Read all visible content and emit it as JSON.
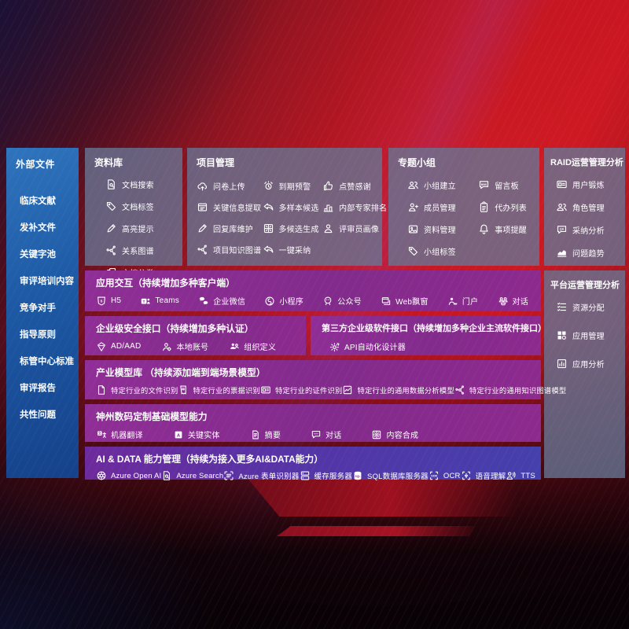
{
  "colors": {
    "background_red": "#c01320",
    "sidebar_blue": "#1d59a4",
    "panel_slate": "#68748f",
    "band_purple": "#872c8e",
    "band_indigo": "#4440ac",
    "text": "#ffffff"
  },
  "sidebar": {
    "title": "外部文件",
    "items": [
      "临床文献",
      "发补文件",
      "关键字池",
      "审评培训内容",
      "竞争对手",
      "指导原则",
      "标管中心标准",
      "审评报告",
      "共性问题"
    ]
  },
  "top_panels": [
    {
      "key": "library",
      "title": "资料库",
      "items": [
        {
          "icon": "doc-search",
          "label": "文档搜索"
        },
        {
          "icon": "tag",
          "label": "文档标签"
        },
        {
          "icon": "pen",
          "label": "高亮提示"
        },
        {
          "icon": "graph",
          "label": "关系图谱"
        },
        {
          "icon": "copy",
          "label": "文档分类"
        }
      ]
    },
    {
      "key": "project",
      "title": "项目管理",
      "items": [
        {
          "icon": "cloud-up",
          "label": "问卷上传"
        },
        {
          "icon": "alarm",
          "label": "到期预警"
        },
        {
          "icon": "thumb",
          "label": "点赞感谢"
        },
        {
          "icon": "window",
          "label": "关键信息提取"
        },
        {
          "icon": "reply",
          "label": "多样本候选"
        },
        {
          "icon": "podium",
          "label": "内部专家排名"
        },
        {
          "icon": "pen",
          "label": "回复库维护"
        },
        {
          "icon": "compose",
          "label": "多候选生成"
        },
        {
          "icon": "person",
          "label": "评审员画像"
        },
        {
          "icon": "graph",
          "label": "项目知识图谱"
        },
        {
          "icon": "reply",
          "label": "一键采纳"
        }
      ]
    },
    {
      "key": "group",
      "title": "专题小组",
      "items": [
        {
          "icon": "people",
          "label": "小组建立"
        },
        {
          "icon": "bbs",
          "label": "留言板"
        },
        {
          "icon": "person-add",
          "label": "成员管理"
        },
        {
          "icon": "clipboard",
          "label": "代办列表"
        },
        {
          "icon": "album",
          "label": "资料管理"
        },
        {
          "icon": "bell",
          "label": "事项提醒"
        },
        {
          "icon": "tag",
          "label": "小组标签"
        }
      ]
    }
  ],
  "right_panels": [
    {
      "key": "raid",
      "title": "RAID运营管理分析",
      "items": [
        {
          "icon": "card",
          "label": "用户锻炼"
        },
        {
          "icon": "people",
          "label": "角色管理"
        },
        {
          "icon": "chat-qa",
          "label": "采纳分析"
        },
        {
          "icon": "trend",
          "label": "问题趋势"
        }
      ]
    },
    {
      "key": "platform",
      "title": "平台运营管理分析",
      "items": [
        {
          "icon": "list",
          "label": "资源分配"
        },
        {
          "icon": "blocks",
          "label": "应用管理"
        },
        {
          "icon": "chart-box",
          "label": "应用分析"
        }
      ]
    }
  ],
  "bands": [
    {
      "key": "interaction",
      "title": "应用交互（持续增加多种客户端）",
      "items": [
        {
          "icon": "h5",
          "label": "H5"
        },
        {
          "icon": "teams",
          "label": "Teams"
        },
        {
          "icon": "wechat",
          "label": "企业微信"
        },
        {
          "icon": "miniapp",
          "label": "小程序"
        },
        {
          "icon": "official",
          "label": "公众号"
        },
        {
          "icon": "webwin",
          "label": "Web飘窗"
        },
        {
          "icon": "portal",
          "label": "门户"
        },
        {
          "icon": "dialog",
          "label": "对话"
        }
      ]
    },
    {
      "key": "security",
      "title": "企业级安全接口（持续增加多种认证）",
      "items": [
        {
          "icon": "ad",
          "label": "AD/AAD"
        },
        {
          "icon": "local",
          "label": "本地账号"
        },
        {
          "icon": "org",
          "label": "组织定义"
        }
      ]
    },
    {
      "key": "thirdparty",
      "title": "第三方企业级软件接口（持续增加多种企业主流软件接口）",
      "items": [
        {
          "icon": "api",
          "label": "API自动化设计器"
        }
      ]
    },
    {
      "key": "industry",
      "title": "产业模型库 （持续添加端到端场景模型）",
      "items": [
        {
          "icon": "doc",
          "label": "特定行业的文件识别"
        },
        {
          "icon": "receipt",
          "label": "特定行业的票据识别"
        },
        {
          "icon": "card",
          "label": "特定行业的证件识别"
        },
        {
          "icon": "chart-rect",
          "label": "特定行业的通用数据分析模型"
        },
        {
          "icon": "graph",
          "label": "特定行业的通用知识图谱模型"
        }
      ]
    },
    {
      "key": "base",
      "title": "神州数码定制基础模型能力",
      "items": [
        {
          "icon": "translate",
          "label": "机器翻译"
        },
        {
          "icon": "entity",
          "label": "关键实体"
        },
        {
          "icon": "summary",
          "label": "摘要"
        },
        {
          "icon": "chat-dots",
          "label": "对话"
        },
        {
          "icon": "compose",
          "label": "内容合成"
        }
      ]
    },
    {
      "key": "aidata",
      "title": "AI & DATA 能力管理（持续为接入更多AI&DATA能力）",
      "items": [
        {
          "icon": "openai",
          "label": "Azure Open AI"
        },
        {
          "icon": "doc-search",
          "label": "Azure Search"
        },
        {
          "icon": "form",
          "label": "Azure 表单识别器"
        },
        {
          "icon": "server",
          "label": "缓存服务器"
        },
        {
          "icon": "sql",
          "label": "SQL数据库服务器"
        },
        {
          "icon": "ocr",
          "label": "OCR"
        },
        {
          "icon": "speech",
          "label": "语音理解"
        },
        {
          "icon": "tts",
          "label": "TTS"
        }
      ]
    }
  ]
}
